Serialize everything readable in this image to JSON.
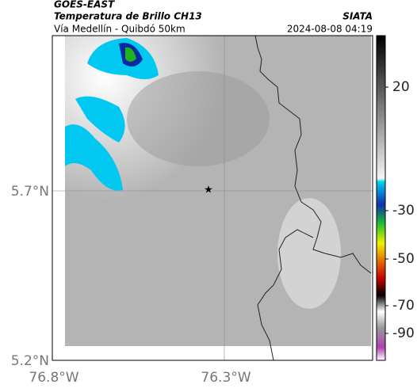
{
  "header": {
    "satellite": "GOES-EAST",
    "product": "Temperatura de Brillo CH13",
    "region": "Vía Medellín - Quibdó 50km",
    "source": "SIATA",
    "timestamp": "2024-08-08 04:19"
  },
  "map": {
    "lat_labels": [
      "5.7°N",
      "5.2°N"
    ],
    "lon_labels": [
      "76.8°W",
      "76.3°W"
    ]
  },
  "colorbar": {
    "ticks": [
      20,
      -30,
      -50,
      -70,
      -90
    ]
  }
}
